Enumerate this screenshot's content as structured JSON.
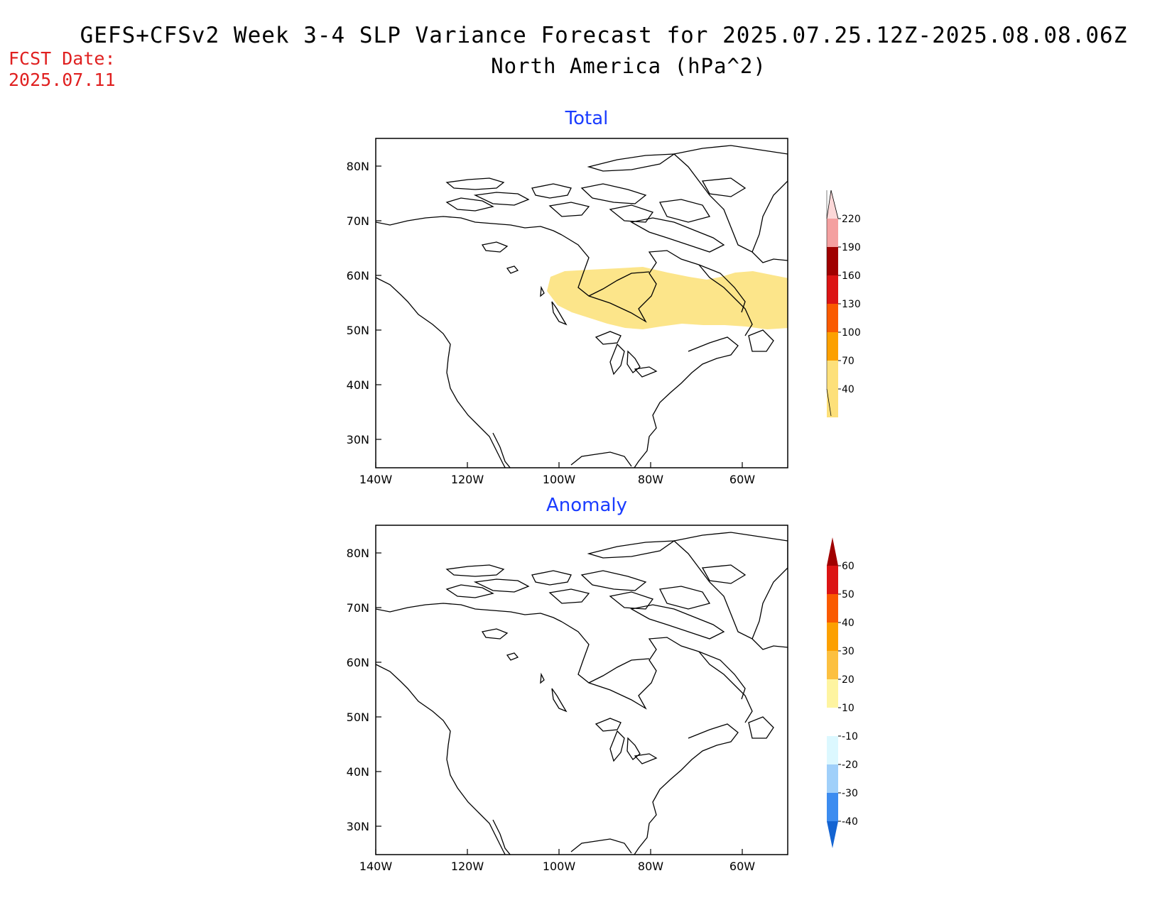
{
  "title": {
    "line1": "GEFS+CFSv2 Week 3-4 SLP Variance Forecast for 2025.07.25.12Z-2025.08.08.06Z",
    "line2": "North America (hPa^2)"
  },
  "fcst": {
    "label": "FCST Date:",
    "date": "2025.07.11"
  },
  "panels": [
    {
      "title": "Total",
      "lat_ticks": [
        "80N",
        "70N",
        "60N",
        "50N",
        "40N",
        "30N"
      ],
      "lon_ticks": [
        "140W",
        "120W",
        "100W",
        "80W",
        "60W"
      ],
      "shaded_region": {
        "level": "40-70",
        "color": "#fce58a"
      },
      "colorbar": {
        "labels": [
          "220",
          "190",
          "160",
          "130",
          "100",
          "70",
          "40"
        ],
        "colors": [
          "#fcd8d8",
          "#f4a0a0",
          "#a00000",
          "#dc1414",
          "#fa5a00",
          "#fca000",
          "#fde07a"
        ]
      }
    },
    {
      "title": "Anomaly",
      "lat_ticks": [
        "80N",
        "70N",
        "60N",
        "50N",
        "40N",
        "30N"
      ],
      "lon_ticks": [
        "140W",
        "120W",
        "100W",
        "80W",
        "60W"
      ],
      "colorbar": {
        "labels": [
          "60",
          "50",
          "40",
          "30",
          "20",
          "10",
          "-10",
          "-20",
          "-30",
          "-40"
        ],
        "colors": [
          "#a00000",
          "#dc1414",
          "#fa5a00",
          "#fca000",
          "#fcc040",
          "#fef4a0",
          "#ffffff",
          "#dcf8ff",
          "#a0d0fa",
          "#3c8cf0",
          "#1464d2"
        ]
      }
    }
  ]
}
